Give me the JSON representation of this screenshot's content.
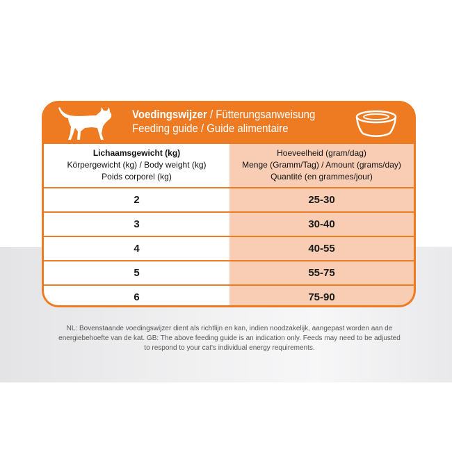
{
  "header": {
    "title_nl": "Voedingswijzer",
    "title_de": " / Fütterungsanweisung",
    "subtitle": "Feeding guide / Guide alimentaire"
  },
  "table": {
    "weight_header": [
      "Lichaamsgewicht (kg)",
      "Körpergewicht (kg) / Body weight (kg)",
      "Poids corporel (kg)"
    ],
    "amount_header": [
      "Hoeveelheid (gram/dag)",
      "Menge (Gramm/Tag) / Amount (grams/day)",
      "Quantité (en grammes/jour)"
    ],
    "rows": [
      {
        "weight": "2",
        "amount": "25-30"
      },
      {
        "weight": "3",
        "amount": "30-40"
      },
      {
        "weight": "4",
        "amount": "40-55"
      },
      {
        "weight": "5",
        "amount": "55-75"
      },
      {
        "weight": "6",
        "amount": "75-90"
      }
    ]
  },
  "note": "NL: Bovenstaande voedingswijzer dient als richtlijn en kan, indien noodzakelijk, aangepast worden aan de energiebehoefte van de kat. GB: The above feeding guide is an indication only. Feeds may need to be adjusted to respond to your cat's individual energy requirements.",
  "colors": {
    "accent": "#ee7a22",
    "amount_column": "#f8cdb4",
    "background_band": "#e9e9eb"
  },
  "icons": [
    "cat-icon",
    "bowl-icon"
  ]
}
